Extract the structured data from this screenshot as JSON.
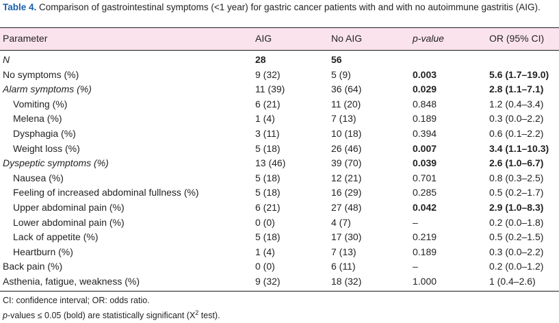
{
  "caption": {
    "label": "Table 4.",
    "text": "Comparison of gastrointestinal symptoms (<1 year) for gastric cancer patients with and with no autoimmune gastritis (AIG)."
  },
  "table": {
    "headers": [
      "Parameter",
      "AIG",
      "No AIG",
      "p-value",
      "OR (95% CI)"
    ],
    "rows": [
      {
        "param": "N",
        "aig": "28",
        "noaig": "56",
        "p": "",
        "or": "",
        "indent": false,
        "italic": true,
        "bold_counts": true,
        "bold_p": false,
        "bold_or": false
      },
      {
        "param": "No symptoms (%)",
        "aig": "9 (32)",
        "noaig": "5 (9)",
        "p": "0.003",
        "or": "5.6 (1.7–19.0)",
        "indent": false,
        "italic": false,
        "bold_counts": false,
        "bold_p": true,
        "bold_or": true
      },
      {
        "param": "Alarm symptoms (%)",
        "aig": "11 (39)",
        "noaig": "36 (64)",
        "p": "0.029",
        "or": "2.8 (1.1–7.1)",
        "indent": false,
        "italic": true,
        "bold_counts": false,
        "bold_p": true,
        "bold_or": true
      },
      {
        "param": "Vomiting (%)",
        "aig": "6 (21)",
        "noaig": "11 (20)",
        "p": "0.848",
        "or": "1.2 (0.4–3.4)",
        "indent": true,
        "italic": false,
        "bold_counts": false,
        "bold_p": false,
        "bold_or": false
      },
      {
        "param": "Melena (%)",
        "aig": "1 (4)",
        "noaig": "7 (13)",
        "p": "0.189",
        "or": "0.3 (0.0–2.2)",
        "indent": true,
        "italic": false,
        "bold_counts": false,
        "bold_p": false,
        "bold_or": false
      },
      {
        "param": "Dysphagia (%)",
        "aig": "3 (11)",
        "noaig": "10 (18)",
        "p": "0.394",
        "or": "0.6 (0.1–2.2)",
        "indent": true,
        "italic": false,
        "bold_counts": false,
        "bold_p": false,
        "bold_or": false
      },
      {
        "param": "Weight loss (%)",
        "aig": "5 (18)",
        "noaig": "26 (46)",
        "p": "0.007",
        "or": "3.4 (1.1–10.3)",
        "indent": true,
        "italic": false,
        "bold_counts": false,
        "bold_p": true,
        "bold_or": true
      },
      {
        "param": "Dyspeptic symptoms (%)",
        "aig": "13 (46)",
        "noaig": "39 (70)",
        "p": "0.039",
        "or": "2.6 (1.0–6.7)",
        "indent": false,
        "italic": true,
        "bold_counts": false,
        "bold_p": true,
        "bold_or": true
      },
      {
        "param": "Nausea (%)",
        "aig": "5 (18)",
        "noaig": "12 (21)",
        "p": "0.701",
        "or": "0.8 (0.3–2.5)",
        "indent": true,
        "italic": false,
        "bold_counts": false,
        "bold_p": false,
        "bold_or": false
      },
      {
        "param": "Feeling of increased abdominal fullness (%)",
        "aig": "5 (18)",
        "noaig": "16 (29)",
        "p": "0.285",
        "or": "0.5 (0.2–1.7)",
        "indent": true,
        "italic": false,
        "bold_counts": false,
        "bold_p": false,
        "bold_or": false
      },
      {
        "param": "Upper abdominal pain (%)",
        "aig": "6 (21)",
        "noaig": "27 (48)",
        "p": "0.042",
        "or": "2.9 (1.0–8.3)",
        "indent": true,
        "italic": false,
        "bold_counts": false,
        "bold_p": true,
        "bold_or": true
      },
      {
        "param": "Lower abdominal pain (%)",
        "aig": "0 (0)",
        "noaig": "4 (7)",
        "p": "–",
        "or": "0.2 (0.0–1.8)",
        "indent": true,
        "italic": false,
        "bold_counts": false,
        "bold_p": false,
        "bold_or": false
      },
      {
        "param": "Lack of appetite (%)",
        "aig": "5 (18)",
        "noaig": "17 (30)",
        "p": "0.219",
        "or": "0.5 (0.2–1.5)",
        "indent": true,
        "italic": false,
        "bold_counts": false,
        "bold_p": false,
        "bold_or": false
      },
      {
        "param": "Heartburn (%)",
        "aig": "1 (4)",
        "noaig": "7 (13)",
        "p": "0.189",
        "or": "0.3 (0.0–2.2)",
        "indent": true,
        "italic": false,
        "bold_counts": false,
        "bold_p": false,
        "bold_or": false
      },
      {
        "param": "Back pain (%)",
        "aig": "0 (0)",
        "noaig": "6 (11)",
        "p": "–",
        "or": "0.2 (0.0–1.2)",
        "indent": false,
        "italic": false,
        "bold_counts": false,
        "bold_p": false,
        "bold_or": false
      },
      {
        "param": "Asthenia, fatigue, weakness (%)",
        "aig": "9 (32)",
        "noaig": "18 (32)",
        "p": "1.000",
        "or": "1 (0.4–2.6)",
        "indent": false,
        "italic": false,
        "bold_counts": false,
        "bold_p": false,
        "bold_or": false
      }
    ]
  },
  "footnotes": {
    "line1": "CI: confidence interval; OR: odds ratio.",
    "line2_prefix": "p",
    "line2_text": "-values ≤ 0.05 (bold) are statistically significant (X",
    "line2_sup": "2",
    "line2_suffix": " test)."
  },
  "colors": {
    "caption_label": "#1a5ea8",
    "header_background": "#fbe3ee"
  }
}
